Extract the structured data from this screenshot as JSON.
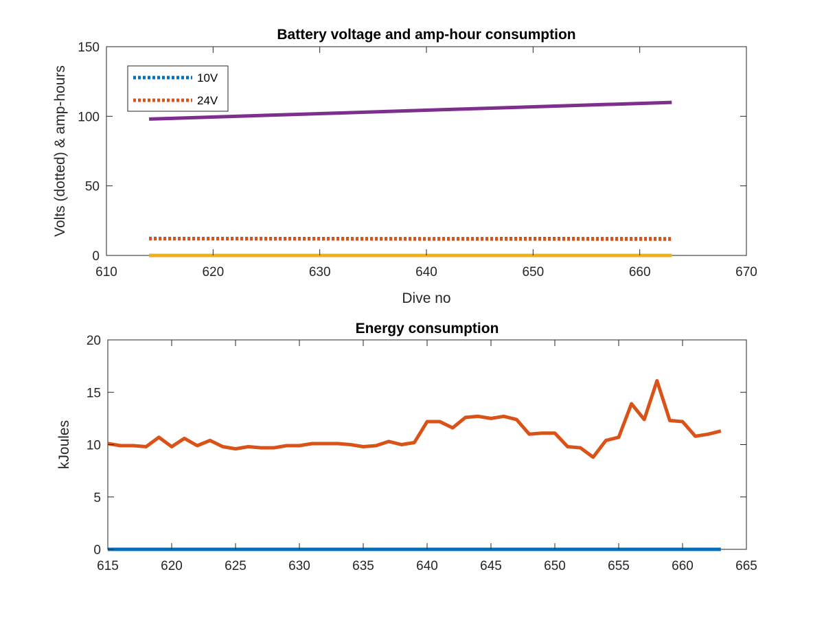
{
  "chart_data": [
    {
      "type": "line",
      "title": "Battery voltage and amp-hour consumption",
      "xlabel": "Dive no",
      "ylabel": "Volts (dotted) & amp-hours",
      "xlim": [
        610,
        670
      ],
      "ylim": [
        0,
        150
      ],
      "xticks": [
        "610",
        "620",
        "630",
        "640",
        "650",
        "660",
        "670"
      ],
      "yticks": [
        "0",
        "50",
        "100",
        "150"
      ],
      "grid": false,
      "legend_position": "top-left",
      "series": [
        {
          "name": "10V",
          "style": "dotted",
          "color": "#0072BD",
          "x": [
            614,
            630,
            640,
            650,
            663
          ],
          "y": [
            12.2,
            12.1,
            12.0,
            12.1,
            12.0
          ]
        },
        {
          "name": "24V",
          "style": "dotted",
          "color": "#D95319",
          "x": [
            614,
            630,
            640,
            650,
            663
          ],
          "y": [
            12.0,
            11.9,
            11.8,
            11.8,
            11.7
          ]
        },
        {
          "style": "solid",
          "color": "#EDB120",
          "x": [
            614,
            663
          ],
          "y": [
            0,
            0
          ]
        },
        {
          "style": "solid",
          "color": "#7E2F8E",
          "x": [
            614,
            663
          ],
          "y": [
            98,
            110
          ]
        }
      ]
    },
    {
      "type": "line",
      "title": "Energy consumption",
      "xlabel": "",
      "ylabel": "kJoules",
      "xlim": [
        615,
        665
      ],
      "ylim": [
        0,
        20
      ],
      "xticks": [
        "615",
        "620",
        "625",
        "630",
        "635",
        "640",
        "645",
        "650",
        "655",
        "660",
        "665"
      ],
      "yticks": [
        "0",
        "5",
        "10",
        "15",
        "20"
      ],
      "grid": false,
      "series": [
        {
          "style": "solid",
          "color": "#0072BD",
          "x": [
            615,
            663
          ],
          "y": [
            0,
            0
          ]
        },
        {
          "style": "solid",
          "color": "#D95319",
          "x": [
            615,
            616,
            617,
            618,
            619,
            620,
            621,
            622,
            623,
            624,
            625,
            626,
            627,
            628,
            629,
            630,
            631,
            632,
            633,
            634,
            635,
            636,
            637,
            638,
            639,
            640,
            641,
            642,
            643,
            644,
            645,
            646,
            647,
            648,
            649,
            650,
            651,
            652,
            653,
            654,
            655,
            656,
            657,
            658,
            659,
            660,
            661,
            662,
            663
          ],
          "y": [
            10.1,
            9.9,
            9.9,
            9.8,
            10.7,
            9.8,
            10.6,
            9.9,
            10.4,
            9.8,
            9.6,
            9.8,
            9.7,
            9.7,
            9.9,
            9.9,
            10.1,
            10.1,
            10.1,
            10.0,
            9.8,
            9.9,
            10.3,
            10.0,
            10.2,
            12.2,
            12.2,
            11.6,
            12.6,
            12.7,
            12.5,
            12.7,
            12.4,
            11.0,
            11.1,
            11.1,
            9.8,
            9.7,
            8.8,
            10.4,
            10.7,
            13.9,
            12.4,
            16.1,
            12.3,
            12.2,
            10.8,
            11.0,
            11.3
          ]
        }
      ]
    }
  ]
}
